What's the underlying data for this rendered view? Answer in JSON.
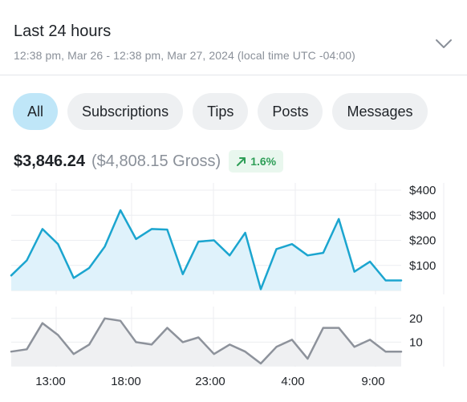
{
  "header": {
    "title": "Last 24 hours",
    "subtitle": "12:38 pm, Mar 26 - 12:38 pm, Mar 27, 2024 (local time UTC -04:00)",
    "expand_icon": "chevron-down-icon"
  },
  "tabs": [
    {
      "label": "All",
      "active": true
    },
    {
      "label": "Subscriptions",
      "active": false
    },
    {
      "label": "Tips",
      "active": false
    },
    {
      "label": "Posts",
      "active": false
    },
    {
      "label": "Messages",
      "active": false
    }
  ],
  "summary": {
    "net": "$3,846.24",
    "gross": "($4,808.15 Gross)",
    "change": "1.6%",
    "change_icon": "trend-up-arrow-icon",
    "change_color": "#2e9e57"
  },
  "colors": {
    "earnings_line": "#1ba5cf",
    "earnings_fill": "#dff2fb",
    "count_line": "#8d929b",
    "count_fill": "#eff0f2",
    "active_tab": "#bfe6f8"
  },
  "chart_data": [
    {
      "type": "area",
      "ylim": [
        0,
        400
      ],
      "y_ticks": [
        "$100",
        "$200",
        "$300",
        "$400"
      ],
      "x_ticks": [
        "13:00",
        "18:00",
        "23:00",
        "4:00",
        "9:00"
      ],
      "x": [
        0,
        1,
        2,
        3,
        4,
        5,
        6,
        7,
        8,
        9,
        10,
        11,
        12,
        13,
        14,
        15,
        16,
        17,
        18,
        19,
        20,
        21,
        22,
        23,
        24,
        25
      ],
      "values": [
        60,
        120,
        245,
        185,
        50,
        90,
        175,
        320,
        205,
        245,
        243,
        65,
        195,
        200,
        140,
        230,
        5,
        165,
        185,
        140,
        150,
        285,
        75,
        115,
        40,
        40
      ]
    },
    {
      "type": "area",
      "ylim": [
        0,
        25
      ],
      "y_ticks": [
        "10",
        "20"
      ],
      "x_ticks": [
        "13:00",
        "18:00",
        "23:00",
        "4:00",
        "9:00"
      ],
      "x": [
        0,
        1,
        2,
        3,
        4,
        5,
        6,
        7,
        8,
        9,
        10,
        11,
        12,
        13,
        14,
        15,
        16,
        17,
        18,
        19,
        20,
        21,
        22,
        23,
        24,
        25
      ],
      "values": [
        6,
        7,
        18,
        13,
        5,
        9,
        20,
        19,
        10,
        9,
        16,
        10,
        12,
        5,
        9,
        6,
        1,
        8,
        11,
        3,
        16,
        16,
        8,
        11,
        6,
        6
      ]
    }
  ]
}
